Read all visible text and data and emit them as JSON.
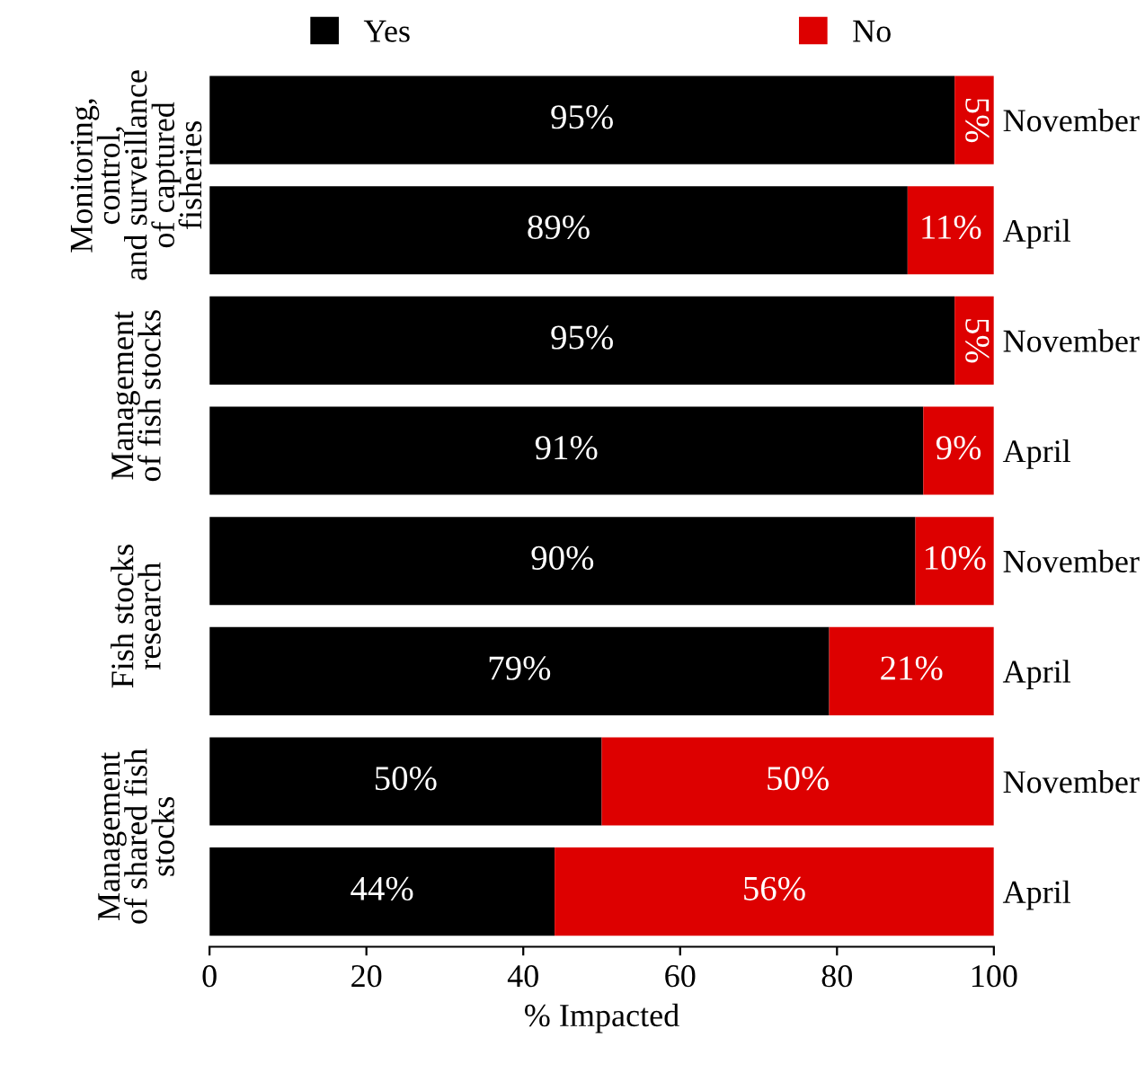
{
  "chart_data": {
    "type": "bar",
    "orientation": "horizontal",
    "stacked": true,
    "xlabel": "% Impacted",
    "categories": [
      "November",
      "April",
      "November",
      "April",
      "November",
      "April",
      "November",
      "April"
    ],
    "series": [
      {
        "name": "Yes",
        "color": "#000000",
        "values": [
          95,
          89,
          95,
          91,
          90,
          79,
          50,
          44
        ],
        "value_labels": [
          "95%",
          "89%",
          "95%",
          "91%",
          "90%",
          "79%",
          "50%",
          "44%"
        ]
      },
      {
        "name": "No",
        "color": "#dd0000",
        "values": [
          5,
          11,
          5,
          9,
          10,
          21,
          50,
          56
        ],
        "value_labels": [
          "5%",
          "11%",
          "5%",
          "9%",
          "10%",
          "21%",
          "50%",
          "56%"
        ]
      }
    ],
    "xlim": [
      0,
      100
    ],
    "xticks": [
      0,
      20,
      40,
      60,
      80,
      100
    ],
    "grid": false,
    "legend": "top",
    "annotations": [
      "Monitoring,\ncontrol,\nand surveillance\nof captured\nfisheries",
      "Management\nof fish stocks",
      "Fish stocks\nresearch",
      "Management\nof shared fish\nstocks"
    ]
  }
}
